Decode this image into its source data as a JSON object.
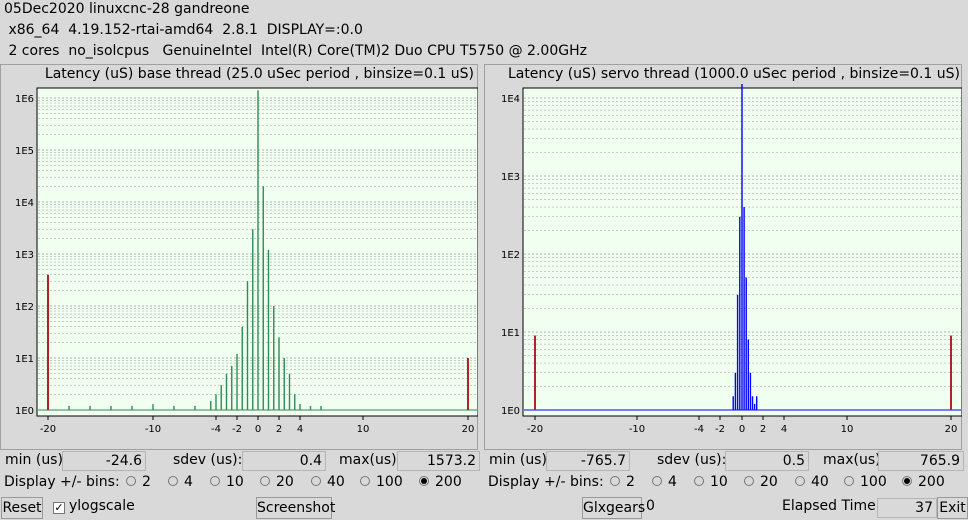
{
  "header": {
    "line1": "05Dec2020 linuxcnc-28 gandreone",
    "line2": " x86_64  4.19.152-rtai-amd64  2.8.1  DISPLAY=:0.0",
    "line3": " 2 cores  no_isolcpus   GenuineIntel  Intel(R) Core(TM)2 Duo CPU T5750 @ 2.00GHz"
  },
  "panels": [
    {
      "title": "Latency (uS) base thread (25.0 uSec period , binsize=0.1 uS)",
      "min_label": "min (us)",
      "min": "-24.6",
      "sdev_label": "sdev (us):",
      "sdev": "0.4",
      "max_label": "max(us)",
      "max": "1573.2",
      "bins_label": "Display +/- bins:",
      "bins": [
        "2",
        "4",
        "10",
        "20",
        "40",
        "100",
        "200"
      ],
      "selected_bins": "200",
      "color": "#2e8b57"
    },
    {
      "title": "Latency (uS) servo thread (1000.0 uSec period , binsize=0.1 uS)",
      "min_label": "min (us)",
      "min": "-765.7",
      "sdev_label": "sdev (us):",
      "sdev": "0.5",
      "max_label": "max(us)",
      "max": "765.9",
      "bins_label": "Display +/- bins:",
      "bins": [
        "2",
        "4",
        "10",
        "20",
        "40",
        "100",
        "200"
      ],
      "selected_bins": "200",
      "color": "#0000ff"
    }
  ],
  "chart_data": [
    {
      "type": "bar",
      "title": "Latency (uS) base thread (25.0 uSec period , binsize=0.1 uS)",
      "yscale": "log",
      "ytick_labels": [
        "1E0",
        "1E1",
        "1E2",
        "1E3",
        "1E4",
        "1E5",
        "1E6"
      ],
      "xtick_labels": [
        "-20",
        "-10",
        "-4",
        "-2",
        "0",
        "2",
        "4",
        "10",
        "20"
      ],
      "xlim": [
        -20,
        20
      ],
      "grid": true,
      "x": [
        -20,
        -18,
        -16,
        -14,
        -12,
        -10,
        -8,
        -6,
        -4.5,
        -4,
        -3.5,
        -3,
        -2.5,
        -2,
        -1.5,
        -1,
        -0.5,
        0,
        0.5,
        1,
        1.5,
        2,
        2.5,
        3,
        3.5,
        4,
        5,
        6,
        20
      ],
      "values": [
        400,
        1.2,
        1.2,
        1.2,
        1.2,
        1.3,
        1.2,
        1.2,
        1.5,
        2,
        3,
        5,
        7,
        12,
        40,
        300,
        3000,
        1400000,
        20000,
        1200,
        100,
        25,
        10,
        5,
        2,
        1.3,
        1.2,
        1.2,
        10
      ]
    },
    {
      "type": "bar",
      "title": "Latency (uS) servo thread (1000.0 uSec period , binsize=0.1 uS)",
      "yscale": "log",
      "ytick_labels": [
        "1E0",
        "1E1",
        "1E2",
        "1E3",
        "1E4"
      ],
      "xtick_labels": [
        "-20",
        "-10",
        "-4",
        "-2",
        "0",
        "2",
        "4",
        "10",
        "20"
      ],
      "xlim": [
        -20,
        20
      ],
      "grid": true,
      "x": [
        -20,
        -0.8,
        -0.6,
        -0.4,
        -0.2,
        0,
        0.2,
        0.4,
        0.6,
        0.8,
        1.0,
        1.2,
        1.4,
        20
      ],
      "values": [
        9,
        1.5,
        3,
        30,
        300,
        28000,
        400,
        50,
        8,
        3,
        1.5,
        1.2,
        1.5,
        9
      ]
    }
  ],
  "bottom": {
    "reset": "Reset",
    "ylogscale": "ylogscale",
    "screenshot": "Screenshot",
    "glxgears": "Glxgears",
    "glxgears_count": "0",
    "elapsed_label": "Elapsed Time:",
    "elapsed": "37",
    "exit": "Exit"
  }
}
